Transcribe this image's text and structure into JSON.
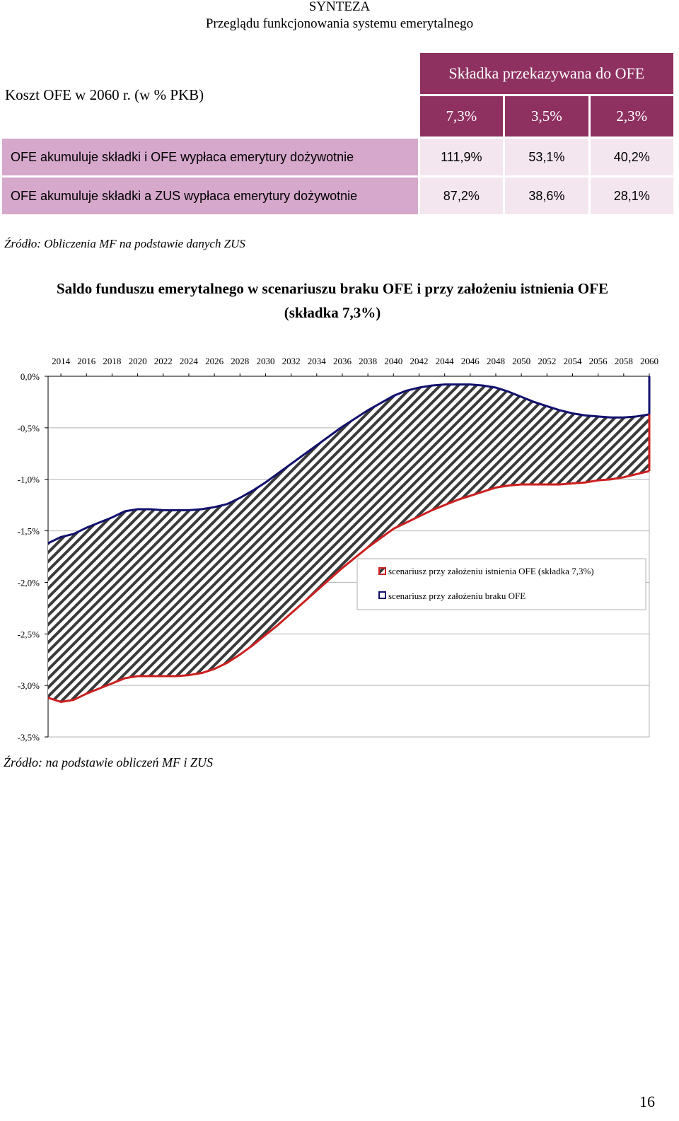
{
  "header": {
    "line1": "SYNTEZA",
    "line2": "Przeglądu funkcjonowania systemu emerytalnego"
  },
  "cost_table": {
    "title": "Koszt OFE w 2060 r. (w % PKB)",
    "header": "Składka przekazywana do OFE",
    "rates": [
      "7,3%",
      "3,5%",
      "2,3%"
    ],
    "rows": [
      {
        "label": "OFE akumuluje składki i OFE wypłaca emerytury dożywotnie",
        "values": [
          "111,9%",
          "53,1%",
          "40,2%"
        ]
      },
      {
        "label": "OFE akumuluje składki a ZUS wypłaca emerytury dożywotnie",
        "values": [
          "87,2%",
          "38,6%",
          "28,1%"
        ]
      }
    ],
    "colors": {
      "header_bg": "#8e3160",
      "label_bg": "#d6a8cc",
      "value_bg": "#f3e6ef"
    }
  },
  "source1": "Źródło: Obliczenia MF na podstawie danych ZUS",
  "chart_title": {
    "line1": "Saldo funduszu emerytalnego w scenariuszu braku OFE i przy założeniu istnienia OFE",
    "line2": "(składka 7,3%)"
  },
  "chart_data": {
    "type": "area",
    "x": [
      2013,
      2014,
      2015,
      2016,
      2017,
      2018,
      2019,
      2020,
      2021,
      2022,
      2023,
      2024,
      2025,
      2026,
      2027,
      2028,
      2029,
      2030,
      2031,
      2032,
      2033,
      2034,
      2035,
      2036,
      2037,
      2038,
      2039,
      2040,
      2041,
      2042,
      2043,
      2044,
      2045,
      2046,
      2047,
      2048,
      2049,
      2050,
      2051,
      2052,
      2053,
      2054,
      2055,
      2056,
      2057,
      2058,
      2059,
      2060
    ],
    "x_tick_labels": [
      "2014",
      "2016",
      "2018",
      "2020",
      "2022",
      "2024",
      "2026",
      "2028",
      "2030",
      "2032",
      "2034",
      "2036",
      "2038",
      "2040",
      "2042",
      "2044",
      "2046",
      "2048",
      "2050",
      "2052",
      "2054",
      "2056",
      "2058",
      "2060"
    ],
    "series": [
      {
        "name": "scenariusz przy założeniu istnienia OFE (składka 7,3%)",
        "color": "#cc1f1f",
        "values": [
          -3.12,
          -3.16,
          -3.14,
          -3.08,
          -3.03,
          -2.98,
          -2.93,
          -2.91,
          -2.91,
          -2.91,
          -2.91,
          -2.9,
          -2.88,
          -2.84,
          -2.78,
          -2.7,
          -2.61,
          -2.51,
          -2.41,
          -2.3,
          -2.19,
          -2.08,
          -1.97,
          -1.86,
          -1.76,
          -1.66,
          -1.57,
          -1.48,
          -1.42,
          -1.36,
          -1.3,
          -1.25,
          -1.2,
          -1.16,
          -1.12,
          -1.08,
          -1.06,
          -1.05,
          -1.05,
          -1.05,
          -1.05,
          -1.04,
          -1.03,
          -1.01,
          -1.0,
          -0.98,
          -0.95,
          -0.92
        ]
      },
      {
        "name": "scenariusz przy założeniu braku OFE",
        "color": "#11116e",
        "values": [
          -1.62,
          -1.56,
          -1.53,
          -1.47,
          -1.42,
          -1.37,
          -1.31,
          -1.29,
          -1.29,
          -1.3,
          -1.3,
          -1.3,
          -1.29,
          -1.27,
          -1.24,
          -1.18,
          -1.11,
          -1.03,
          -0.94,
          -0.85,
          -0.76,
          -0.67,
          -0.58,
          -0.49,
          -0.41,
          -0.33,
          -0.26,
          -0.19,
          -0.14,
          -0.11,
          -0.09,
          -0.08,
          -0.08,
          -0.08,
          -0.09,
          -0.11,
          -0.15,
          -0.2,
          -0.25,
          -0.29,
          -0.33,
          -0.36,
          -0.38,
          -0.39,
          -0.4,
          -0.4,
          -0.39,
          -0.37
        ]
      }
    ],
    "y_tick_labels": [
      "0,0%",
      "-0,5%",
      "-1,0%",
      "-1,5%",
      "-2,0%",
      "-2,5%",
      "-3,0%",
      "-3,5%"
    ],
    "ylim": [
      -3.5,
      0
    ],
    "grid": true,
    "legend_position": "center-right",
    "x_axis_position": "top"
  },
  "source2": "Źródło: na podstawie obliczeń MF i ZUS",
  "page_number": "16"
}
